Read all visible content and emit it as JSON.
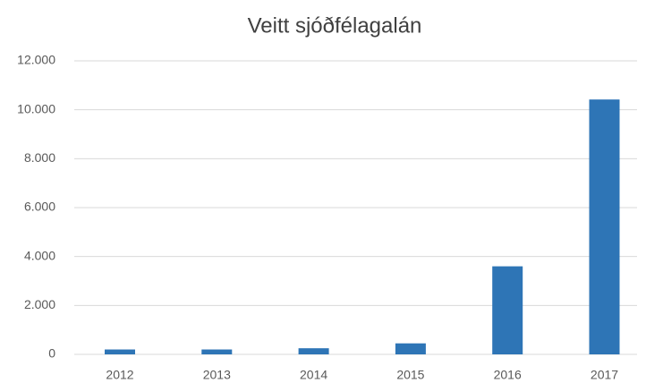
{
  "chart_data": {
    "type": "bar",
    "title": "Veitt sjóðfélagalán",
    "categories": [
      "2012",
      "2013",
      "2014",
      "2015",
      "2016",
      "2017"
    ],
    "values": [
      200,
      200,
      250,
      450,
      3600,
      10420
    ],
    "color": "#2e75b6",
    "ylim": [
      0,
      12000
    ],
    "yticks": [
      0,
      {
        "value": 2000,
        "label": "2.000"
      },
      {
        "value": 4000,
        "label": "4.000"
      },
      {
        "value": 6000,
        "label": "6.000"
      },
      {
        "value": 8000,
        "label": "8.000"
      },
      {
        "value": 10000,
        "label": "10.000"
      },
      {
        "value": 12000,
        "label": "12.000"
      }
    ],
    "grid": true
  }
}
